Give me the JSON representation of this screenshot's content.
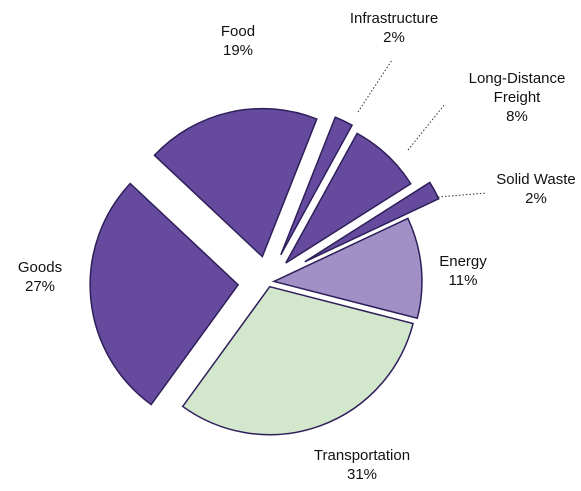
{
  "chart_data": {
    "type": "pie",
    "categories": [
      "Food",
      "Infrastructure",
      "Long-Distance Freight",
      "Solid Waste",
      "Energy",
      "Transportation",
      "Goods"
    ],
    "values": [
      19,
      2,
      8,
      2,
      11,
      31,
      27
    ],
    "value_labels": [
      "19%",
      "2%",
      "8%",
      "2%",
      "11%",
      "31%",
      "27%"
    ],
    "colors": [
      "#654a9e",
      "#654a9e",
      "#654a9e",
      "#654a9e",
      "#a090c6",
      "#d3e7cd",
      "#654a9e"
    ]
  }
}
